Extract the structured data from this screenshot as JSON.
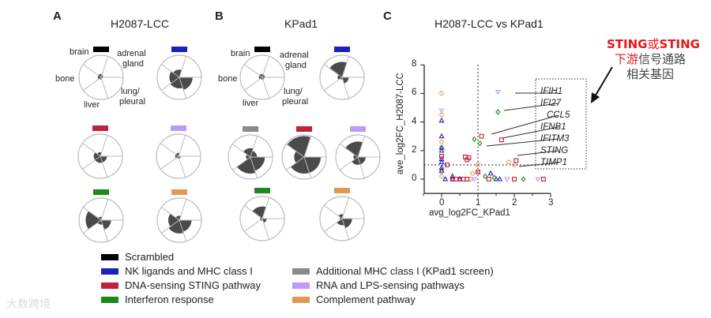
{
  "panels": {
    "A": {
      "letter": "A",
      "title": "H2087-LCC"
    },
    "B": {
      "letter": "B",
      "title": "KPad1"
    },
    "C": {
      "letter": "C",
      "title": "H2087-LCC vs KPad1"
    }
  },
  "organ_labels": {
    "brain": "brain",
    "adrenal": "adrenal",
    "gland": "gland",
    "bone": "bone",
    "liver": "liver",
    "lung": "lung/",
    "pleural": "pleural"
  },
  "colors": {
    "scrambled": "#000000",
    "nk": "#1a22b8",
    "sting": "#c0203a",
    "ifn": "#1a8a1a",
    "mhc_add": "#8a8a8a",
    "rna": "#b89cf5",
    "complement": "#e09a50",
    "sector": "#4a4a4a",
    "annotation_red": "#e8151b"
  },
  "legend": {
    "left": [
      {
        "key": "scrambled",
        "label": "Scrambled"
      },
      {
        "key": "nk",
        "label": "NK ligands and MHC class I"
      },
      {
        "key": "sting",
        "label": "DNA-sensing STING pathway"
      },
      {
        "key": "ifn",
        "label": "Interferon response"
      }
    ],
    "right": [
      {
        "key": "mhc_add",
        "label": "Additional MHC class I (KPad1 screen)"
      },
      {
        "key": "rna",
        "label": "RNA and LPS-sensing pathways"
      },
      {
        "key": "complement",
        "label": "Complement pathway"
      }
    ]
  },
  "annotation": {
    "line1_red": "STING",
    "line1_mid": "或",
    "line1_red2": "STING",
    "line2_red": "下游",
    "line2_rest": "信号通路",
    "line3": "相关基因"
  },
  "watermark": "大数跨境",
  "chart_data": [
    {
      "type": "polar-area",
      "panel": "A",
      "sectors": [
        "brain",
        "adrenal gland",
        "lung/pleural",
        "liver",
        "bone"
      ],
      "value_scale": "fraction of max radius",
      "charts": [
        {
          "group": "scrambled",
          "values": [
            0.15,
            0.1,
            0.06,
            0.1,
            0.15
          ]
        },
        {
          "group": "nk",
          "values": [
            0.35,
            0.05,
            0.6,
            0.5,
            0.45
          ]
        },
        {
          "group": "sting",
          "values": [
            0.18,
            0.05,
            0.3,
            0.3,
            0.3
          ]
        },
        {
          "group": "rna",
          "values": [
            0.15,
            0.05,
            0.1,
            0.1,
            0.15
          ]
        },
        {
          "group": "ifn",
          "values": [
            0.15,
            0.05,
            0.45,
            0.2,
            0.7
          ]
        },
        {
          "group": "complement",
          "values": [
            0.2,
            0.05,
            0.55,
            0.6,
            0.5
          ]
        }
      ]
    },
    {
      "type": "polar-area",
      "panel": "B",
      "sectors": [
        "brain",
        "adrenal gland",
        "lung/pleural",
        "liver",
        "bone"
      ],
      "value_scale": "fraction of max radius",
      "charts": [
        {
          "group": "scrambled",
          "values": [
            0.15,
            0.12,
            0.1,
            0.1,
            0.15
          ]
        },
        {
          "group": "nk",
          "values": [
            0.7,
            0.05,
            0.3,
            0.1,
            0.2
          ]
        },
        {
          "group": "mhc_add",
          "values": [
            0.4,
            0.3,
            0.65,
            0.75,
            0.2
          ]
        },
        {
          "group": "sting",
          "values": [
            0.95,
            0.05,
            0.75,
            0.75,
            0.45
          ]
        },
        {
          "group": "rna",
          "values": [
            0.7,
            0.05,
            0.35,
            0.35,
            0.2
          ]
        },
        {
          "group": "ifn",
          "values": [
            0.55,
            0.05,
            0.2,
            0.1,
            0.1
          ]
        },
        {
          "group": "complement",
          "values": [
            0.2,
            0.05,
            0.45,
            0.3,
            0.1
          ]
        }
      ]
    },
    {
      "type": "scatter",
      "panel": "C",
      "title": "H2087-LCC vs KPad1",
      "xlabel": "avg_log2FC_KPad1",
      "ylabel": "ave_log2FC_H2087-LCC",
      "xlim": [
        -0.5,
        3
      ],
      "ylim": [
        -1,
        8
      ],
      "xticks": [
        "0",
        "1",
        "2",
        "3"
      ],
      "yticks": [
        "0",
        "2",
        "4",
        "6",
        "8"
      ],
      "thresholds": {
        "x": 1,
        "y": 1
      },
      "series": [
        {
          "group": "complement",
          "marker": "circle",
          "points": [
            [
              0,
              6
            ],
            [
              0,
              4.5
            ],
            [
              0,
              2.6
            ],
            [
              0,
              2.2
            ],
            [
              0,
              1.6
            ],
            [
              0,
              0.5
            ],
            [
              0,
              0.2
            ],
            [
              0.85,
              0.4
            ],
            [
              1,
              1
            ],
            [
              1,
              0.5
            ],
            [
              1.85,
              1.2
            ],
            [
              2,
              1
            ],
            [
              0.3,
              0
            ],
            [
              0.8,
              0
            ]
          ]
        },
        {
          "group": "rna",
          "marker": "triangle-down",
          "points": [
            [
              0,
              4.8
            ],
            [
              1.55,
              6.1
            ],
            [
              1.8,
              0
            ],
            [
              2.65,
              0
            ],
            [
              0.9,
              0
            ]
          ]
        },
        {
          "group": "nk",
          "marker": "triangle-up",
          "points": [
            [
              0,
              4.1
            ],
            [
              0,
              3
            ],
            [
              0,
              2.2
            ],
            [
              0,
              2
            ],
            [
              0,
              1.4
            ],
            [
              0,
              1.2
            ],
            [
              0,
              0.8
            ],
            [
              0,
              0.6
            ],
            [
              0.1,
              0
            ],
            [
              0.3,
              0.2
            ],
            [
              0.3,
              0
            ],
            [
              1.35,
              0.4
            ],
            [
              1.5,
              0
            ],
            [
              1.6,
              0
            ],
            [
              0.5,
              0
            ]
          ]
        },
        {
          "group": "sting",
          "marker": "square",
          "points": [
            [
              0,
              1.6
            ],
            [
              0.15,
              1
            ],
            [
              0.65,
              1.55
            ],
            [
              0.7,
              1.35
            ],
            [
              0.75,
              1.5
            ],
            [
              1.1,
              3
            ],
            [
              1,
              0.5
            ],
            [
              1.65,
              2.75
            ],
            [
              2.05,
              1.3
            ],
            [
              2,
              0
            ],
            [
              2.8,
              0
            ],
            [
              0.3,
              0
            ],
            [
              0.4,
              0
            ],
            [
              0.5,
              0
            ],
            [
              0.6,
              0
            ],
            [
              0.7,
              0
            ],
            [
              1.3,
              0
            ]
          ]
        },
        {
          "group": "ifn",
          "marker": "diamond",
          "points": [
            [
              1.55,
              4.7
            ],
            [
              0.9,
              2.8
            ],
            [
              1.05,
              2.5
            ],
            [
              1.2,
              0.2
            ],
            [
              1.45,
              0.1
            ],
            [
              2.25,
              0
            ]
          ]
        }
      ],
      "annotations": [
        {
          "label": "IFIH1",
          "point": [
            1.55,
            6.1
          ]
        },
        {
          "label": "IFI27",
          "point": [
            1.55,
            4.7
          ]
        },
        {
          "label": "CCL5",
          "point": [
            1.1,
            3
          ]
        },
        {
          "label": "IFNB1",
          "point": [
            1.65,
            2.75
          ]
        },
        {
          "label": "IFITM3",
          "point": [
            1.05,
            2.5
          ]
        },
        {
          "label": "STING",
          "point": [
            2.05,
            1.3
          ]
        },
        {
          "label": "TIMP1",
          "point": [
            2,
            1
          ]
        }
      ]
    }
  ]
}
